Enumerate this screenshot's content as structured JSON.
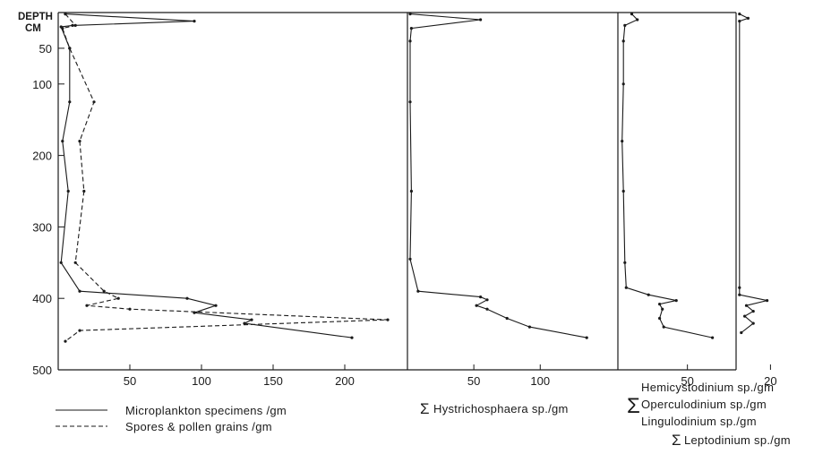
{
  "chart_data": [
    {
      "type": "line",
      "y_header": [
        "DEPTH",
        "CM"
      ],
      "y_ticks": [
        50,
        100,
        200,
        300,
        400,
        500
      ],
      "ylim": [
        0,
        500
      ],
      "x_ticks": [
        50,
        100,
        150,
        200
      ],
      "xlim": [
        0,
        230
      ],
      "series": [
        {
          "name": "Microplankton specimens /gm",
          "style": "solid",
          "points": [
            [
              5,
              2
            ],
            [
              95,
              12
            ],
            [
              10,
              18
            ],
            [
              2,
              20
            ],
            [
              8,
              50
            ],
            [
              8,
              125
            ],
            [
              3,
              180
            ],
            [
              7,
              250
            ],
            [
              2,
              350
            ],
            [
              15,
              390
            ],
            [
              90,
              400
            ],
            [
              110,
              410
            ],
            [
              95,
              420
            ],
            [
              135,
              430
            ],
            [
              130,
              435
            ],
            [
              205,
              455
            ]
          ]
        },
        {
          "name": "Spores & pollen grains /gm",
          "style": "dashed",
          "points": [
            [
              5,
              2
            ],
            [
              12,
              18
            ],
            [
              3,
              22
            ],
            [
              8,
              50
            ],
            [
              25,
              125
            ],
            [
              15,
              180
            ],
            [
              18,
              250
            ],
            [
              12,
              350
            ],
            [
              32,
              390
            ],
            [
              42,
              400
            ],
            [
              20,
              410
            ],
            [
              50,
              415
            ],
            [
              230,
              430
            ],
            [
              15,
              445
            ],
            [
              5,
              460
            ]
          ]
        }
      ]
    },
    {
      "type": "line",
      "x_ticks": [
        50,
        100
      ],
      "xlim": [
        0,
        145
      ],
      "series": [
        {
          "name": "Hystrichosphaera sp./gm",
          "prefix": "Σ",
          "style": "solid",
          "points": [
            [
              2,
              2
            ],
            [
              55,
              10
            ],
            [
              3,
              22
            ],
            [
              2,
              40
            ],
            [
              2,
              125
            ],
            [
              3,
              250
            ],
            [
              2,
              345
            ],
            [
              8,
              390
            ],
            [
              55,
              398
            ],
            [
              60,
              402
            ],
            [
              52,
              410
            ],
            [
              60,
              415
            ],
            [
              75,
              428
            ],
            [
              92,
              440
            ],
            [
              135,
              455
            ]
          ]
        }
      ]
    },
    {
      "type": "line",
      "x_ticks": [
        50
      ],
      "xlim": [
        0,
        85
      ],
      "series": [
        {
          "name_lines": [
            "Hemicystodinium sp./gm",
            "Operculodinium sp./gm",
            "Lingulodinium sp./gm"
          ],
          "prefix": "Σ",
          "style": "solid",
          "points": [
            [
              10,
              2
            ],
            [
              14,
              10
            ],
            [
              5,
              18
            ],
            [
              4,
              40
            ],
            [
              4,
              100
            ],
            [
              3,
              180
            ],
            [
              4,
              250
            ],
            [
              5,
              350
            ],
            [
              6,
              385
            ],
            [
              22,
              395
            ],
            [
              42,
              403
            ],
            [
              30,
              408
            ],
            [
              32,
              415
            ],
            [
              30,
              428
            ],
            [
              33,
              440
            ],
            [
              68,
              455
            ]
          ]
        }
      ]
    },
    {
      "type": "line",
      "x_ticks": [
        20
      ],
      "xlim": [
        0,
        25
      ],
      "series": [
        {
          "name": "Leptodinium sp./gm",
          "prefix": "Σ",
          "style": "solid",
          "points": [
            [
              2,
              2
            ],
            [
              7,
              8
            ],
            [
              2,
              12
            ],
            [
              2,
              385
            ],
            [
              2,
              395
            ],
            [
              18,
              403
            ],
            [
              6,
              410
            ],
            [
              10,
              418
            ],
            [
              5,
              425
            ],
            [
              10,
              435
            ],
            [
              3,
              448
            ]
          ]
        }
      ]
    }
  ]
}
